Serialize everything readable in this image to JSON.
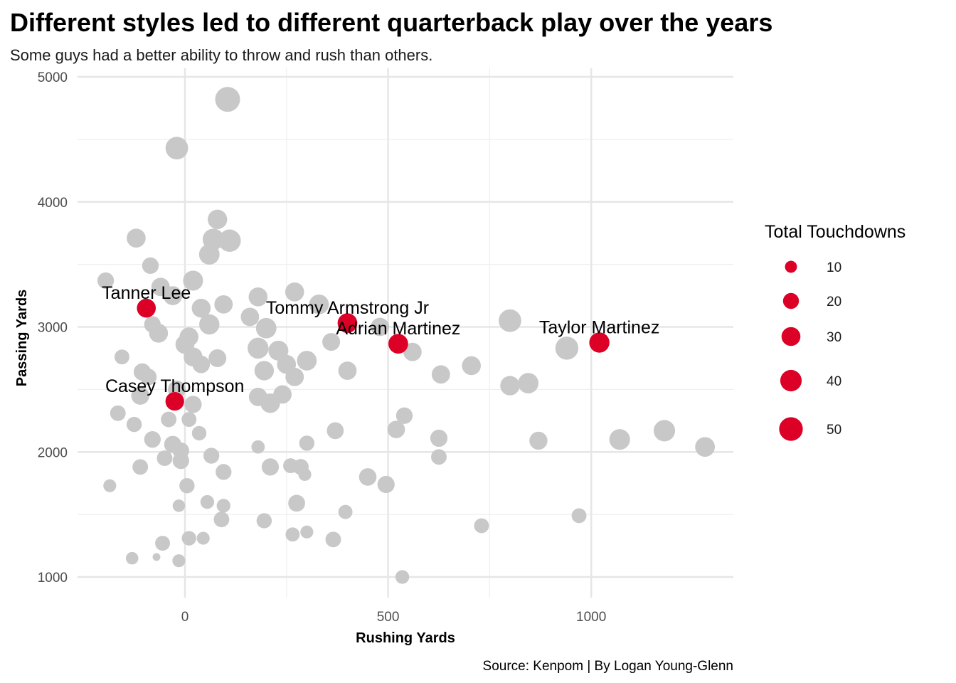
{
  "chart_data": {
    "type": "scatter",
    "title": "Different styles led to different quarterback play over the years",
    "subtitle": "Some guys had a better ability to throw and rush than others.",
    "xlabel": "Rushing Yards",
    "ylabel": "Passing Yards",
    "caption": "Source: Kenpom | By Logan Young-Glenn",
    "xlim": [
      -240,
      1350
    ],
    "ylim": [
      820,
      5100
    ],
    "xticks": [
      0,
      500,
      1000
    ],
    "yticks": [
      1000,
      2000,
      3000,
      4000,
      5000
    ],
    "grid": true,
    "colors": {
      "highlight": "#dc0027",
      "other": "#c8c8c8",
      "grid": "#e6e6e6"
    },
    "legend": {
      "title": "Total Touchdowns",
      "position": "right",
      "entries": [
        10,
        20,
        30,
        40,
        50
      ]
    },
    "highlighted": [
      {
        "name": "Tanner Lee",
        "x": -95,
        "y": 3150,
        "td": 30
      },
      {
        "name": "Tommy Armstrong Jr",
        "x": 400,
        "y": 3030,
        "td": 33
      },
      {
        "name": "Adrian Martinez",
        "x": 525,
        "y": 2865,
        "td": 33
      },
      {
        "name": "Taylor Martinez",
        "x": 1020,
        "y": 2875,
        "td": 35
      },
      {
        "name": "Casey Thompson",
        "x": -25,
        "y": 2405,
        "td": 29
      }
    ],
    "points": [
      {
        "x": 105,
        "y": 4820,
        "td": 56
      },
      {
        "x": -20,
        "y": 4430,
        "td": 45
      },
      {
        "x": 80,
        "y": 3860,
        "td": 32
      },
      {
        "x": -120,
        "y": 3710,
        "td": 30
      },
      {
        "x": 110,
        "y": 3690,
        "td": 44
      },
      {
        "x": 70,
        "y": 3700,
        "td": 40
      },
      {
        "x": 60,
        "y": 3580,
        "td": 36
      },
      {
        "x": -85,
        "y": 3490,
        "td": 22
      },
      {
        "x": -195,
        "y": 3370,
        "td": 22
      },
      {
        "x": 20,
        "y": 3370,
        "td": 34
      },
      {
        "x": -60,
        "y": 3320,
        "td": 28
      },
      {
        "x": -30,
        "y": 3250,
        "td": 30
      },
      {
        "x": 180,
        "y": 3240,
        "td": 30
      },
      {
        "x": 270,
        "y": 3280,
        "td": 30
      },
      {
        "x": 330,
        "y": 3180,
        "td": 33
      },
      {
        "x": 95,
        "y": 3180,
        "td": 28
      },
      {
        "x": 40,
        "y": 3150,
        "td": 30
      },
      {
        "x": 160,
        "y": 3080,
        "td": 28
      },
      {
        "x": 60,
        "y": 3020,
        "td": 35
      },
      {
        "x": -80,
        "y": 3020,
        "td": 22
      },
      {
        "x": 200,
        "y": 2990,
        "td": 36
      },
      {
        "x": -65,
        "y": 2950,
        "td": 30
      },
      {
        "x": 10,
        "y": 2920,
        "td": 30
      },
      {
        "x": 360,
        "y": 2880,
        "td": 26
      },
      {
        "x": 480,
        "y": 3000,
        "td": 28
      },
      {
        "x": 180,
        "y": 2830,
        "td": 38
      },
      {
        "x": 230,
        "y": 2810,
        "td": 34
      },
      {
        "x": 0,
        "y": 2860,
        "td": 30
      },
      {
        "x": 80,
        "y": 2750,
        "td": 26
      },
      {
        "x": 20,
        "y": 2760,
        "td": 30
      },
      {
        "x": 300,
        "y": 2730,
        "td": 33
      },
      {
        "x": 250,
        "y": 2700,
        "td": 30
      },
      {
        "x": 40,
        "y": 2700,
        "td": 25
      },
      {
        "x": -155,
        "y": 2760,
        "td": 17
      },
      {
        "x": -105,
        "y": 2640,
        "td": 24
      },
      {
        "x": -90,
        "y": 2600,
        "td": 22
      },
      {
        "x": 195,
        "y": 2650,
        "td": 32
      },
      {
        "x": 270,
        "y": 2600,
        "td": 28
      },
      {
        "x": 400,
        "y": 2650,
        "td": 28
      },
      {
        "x": 560,
        "y": 2800,
        "td": 28
      },
      {
        "x": 630,
        "y": 2620,
        "td": 28
      },
      {
        "x": 705,
        "y": 2690,
        "td": 30
      },
      {
        "x": 800,
        "y": 3050,
        "td": 45
      },
      {
        "x": 940,
        "y": 2830,
        "td": 47
      },
      {
        "x": 800,
        "y": 2530,
        "td": 32
      },
      {
        "x": 845,
        "y": 2550,
        "td": 36
      },
      {
        "x": -20,
        "y": 2500,
        "td": 26
      },
      {
        "x": -110,
        "y": 2450,
        "td": 27
      },
      {
        "x": 20,
        "y": 2380,
        "td": 24
      },
      {
        "x": 240,
        "y": 2460,
        "td": 28
      },
      {
        "x": 180,
        "y": 2440,
        "td": 28
      },
      {
        "x": 210,
        "y": 2390,
        "td": 32
      },
      {
        "x": -165,
        "y": 2310,
        "td": 19
      },
      {
        "x": -125,
        "y": 2220,
        "td": 18
      },
      {
        "x": -40,
        "y": 2260,
        "td": 19
      },
      {
        "x": 10,
        "y": 2260,
        "td": 17
      },
      {
        "x": 35,
        "y": 2150,
        "td": 16
      },
      {
        "x": 540,
        "y": 2290,
        "td": 22
      },
      {
        "x": 520,
        "y": 2180,
        "td": 25
      },
      {
        "x": 370,
        "y": 2170,
        "td": 23
      },
      {
        "x": 625,
        "y": 2110,
        "td": 24
      },
      {
        "x": -80,
        "y": 2100,
        "td": 22
      },
      {
        "x": -30,
        "y": 2060,
        "td": 24
      },
      {
        "x": -10,
        "y": 2010,
        "td": 22
      },
      {
        "x": 300,
        "y": 2070,
        "td": 18
      },
      {
        "x": 180,
        "y": 2040,
        "td": 13
      },
      {
        "x": 625,
        "y": 1960,
        "td": 19
      },
      {
        "x": 870,
        "y": 2090,
        "td": 27
      },
      {
        "x": 1070,
        "y": 2100,
        "td": 37
      },
      {
        "x": 1180,
        "y": 2170,
        "td": 40
      },
      {
        "x": 1280,
        "y": 2040,
        "td": 33
      },
      {
        "x": -50,
        "y": 1950,
        "td": 19
      },
      {
        "x": -10,
        "y": 1930,
        "td": 22
      },
      {
        "x": 65,
        "y": 1970,
        "td": 20
      },
      {
        "x": -110,
        "y": 1880,
        "td": 19
      },
      {
        "x": 95,
        "y": 1840,
        "td": 20
      },
      {
        "x": 210,
        "y": 1880,
        "td": 24
      },
      {
        "x": 260,
        "y": 1890,
        "td": 17
      },
      {
        "x": 285,
        "y": 1880,
        "td": 20
      },
      {
        "x": 295,
        "y": 1820,
        "td": 12
      },
      {
        "x": 450,
        "y": 1800,
        "td": 25
      },
      {
        "x": 495,
        "y": 1740,
        "td": 24
      },
      {
        "x": -185,
        "y": 1730,
        "td": 12
      },
      {
        "x": 5,
        "y": 1730,
        "td": 18
      },
      {
        "x": 55,
        "y": 1600,
        "td": 14
      },
      {
        "x": 95,
        "y": 1570,
        "td": 14
      },
      {
        "x": -15,
        "y": 1570,
        "td": 11
      },
      {
        "x": 275,
        "y": 1590,
        "td": 23
      },
      {
        "x": 90,
        "y": 1460,
        "td": 19
      },
      {
        "x": 195,
        "y": 1450,
        "td": 18
      },
      {
        "x": 395,
        "y": 1520,
        "td": 15
      },
      {
        "x": 730,
        "y": 1410,
        "td": 17
      },
      {
        "x": 970,
        "y": 1490,
        "td": 17
      },
      {
        "x": 265,
        "y": 1340,
        "td": 15
      },
      {
        "x": 300,
        "y": 1360,
        "td": 12
      },
      {
        "x": 365,
        "y": 1300,
        "td": 19
      },
      {
        "x": 10,
        "y": 1310,
        "td": 16
      },
      {
        "x": 45,
        "y": 1310,
        "td": 12
      },
      {
        "x": -55,
        "y": 1270,
        "td": 17
      },
      {
        "x": -130,
        "y": 1150,
        "td": 11
      },
      {
        "x": -70,
        "y": 1160,
        "td": 3
      },
      {
        "x": -15,
        "y": 1130,
        "td": 12
      },
      {
        "x": 535,
        "y": 1000,
        "td": 14
      }
    ]
  }
}
